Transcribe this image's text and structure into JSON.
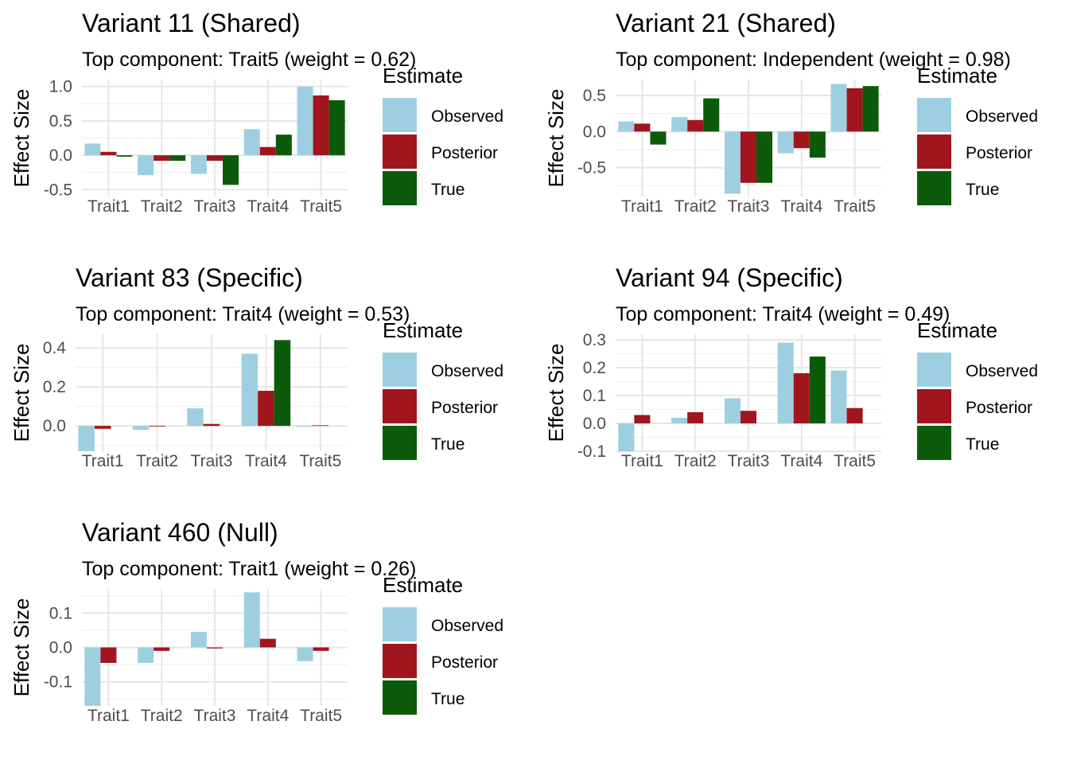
{
  "colors": {
    "Observed": "#9ecfe0",
    "Posterior": "#a1151e",
    "True": "#0b5b0b"
  },
  "legend": {
    "title": "Estimate",
    "items": [
      "Observed",
      "Posterior",
      "True"
    ]
  },
  "chart_data": [
    {
      "type": "bar",
      "title": "Variant 11 (Shared)",
      "subtitle": "Top component: Trait5 (weight = 0.62)",
      "ylabel": "Effect Size",
      "categories": [
        "Trait1",
        "Trait2",
        "Trait3",
        "Trait4",
        "Trait5"
      ],
      "ylim": [
        -0.6,
        1.1
      ],
      "yticks": [
        -0.5,
        0.0,
        0.5,
        1.0
      ],
      "ytick_labels": [
        "-0.5",
        "0.0",
        "0.5",
        "1.0"
      ],
      "series": [
        {
          "name": "Observed",
          "values": [
            0.17,
            -0.29,
            -0.27,
            0.38,
            1.0
          ]
        },
        {
          "name": "Posterior",
          "values": [
            0.05,
            -0.08,
            -0.08,
            0.12,
            0.87
          ]
        },
        {
          "name": "True",
          "values": [
            -0.02,
            -0.08,
            -0.43,
            0.3,
            0.8
          ]
        }
      ]
    },
    {
      "type": "bar",
      "title": "Variant 21 (Shared)",
      "subtitle": "Top component: Independent (weight = 0.98)",
      "ylabel": "Effect Size",
      "categories": [
        "Trait1",
        "Trait2",
        "Trait3",
        "Trait4",
        "Trait5"
      ],
      "ylim": [
        -0.9,
        0.72
      ],
      "yticks": [
        -0.5,
        0.0,
        0.5
      ],
      "ytick_labels": [
        "-0.5",
        "0.0",
        "0.5"
      ],
      "series": [
        {
          "name": "Observed",
          "values": [
            0.14,
            0.2,
            -0.86,
            -0.3,
            0.66
          ]
        },
        {
          "name": "Posterior",
          "values": [
            0.11,
            0.16,
            -0.71,
            -0.23,
            0.6
          ]
        },
        {
          "name": "True",
          "values": [
            -0.18,
            0.46,
            -0.71,
            -0.36,
            0.63
          ]
        }
      ]
    },
    {
      "type": "bar",
      "title": "Variant 83 (Specific)",
      "subtitle": "Top component: Trait4 (weight = 0.53)",
      "ylabel": "Effect Size",
      "categories": [
        "Trait1",
        "Trait2",
        "Trait3",
        "Trait4",
        "Trait5"
      ],
      "ylim": [
        -0.13,
        0.47
      ],
      "yticks": [
        0.0,
        0.2,
        0.4
      ],
      "ytick_labels": [
        "0.0",
        "0.2",
        "0.4"
      ],
      "series": [
        {
          "name": "Observed",
          "values": [
            -0.13,
            -0.02,
            0.09,
            0.37,
            -0.005
          ]
        },
        {
          "name": "Posterior",
          "values": [
            -0.015,
            -0.003,
            0.01,
            0.18,
            0.003
          ]
        },
        {
          "name": "True",
          "values": [
            0.0,
            0.0,
            0.0,
            0.44,
            0.0
          ]
        }
      ]
    },
    {
      "type": "bar",
      "title": "Variant 94 (Specific)",
      "subtitle": "Top component: Trait4 (weight = 0.49)",
      "ylabel": "Effect Size",
      "categories": [
        "Trait1",
        "Trait2",
        "Trait3",
        "Trait4",
        "Trait5"
      ],
      "ylim": [
        -0.1,
        0.32
      ],
      "yticks": [
        -0.1,
        0.0,
        0.1,
        0.2,
        0.3
      ],
      "ytick_labels": [
        "-0.1",
        "0.0",
        "0.1",
        "0.2",
        "0.3"
      ],
      "series": [
        {
          "name": "Observed",
          "values": [
            -0.1,
            0.02,
            0.09,
            0.29,
            0.19
          ]
        },
        {
          "name": "Posterior",
          "values": [
            0.03,
            0.04,
            0.045,
            0.18,
            0.055
          ]
        },
        {
          "name": "True",
          "values": [
            0.0,
            0.0,
            0.0,
            0.24,
            0.0
          ]
        }
      ]
    },
    {
      "type": "bar",
      "title": "Variant 460 (Null)",
      "subtitle": "Top component: Trait1 (weight = 0.26)",
      "ylabel": "Effect Size",
      "categories": [
        "Trait1",
        "Trait2",
        "Trait3",
        "Trait4",
        "Trait5"
      ],
      "ylim": [
        -0.17,
        0.17
      ],
      "yticks": [
        -0.1,
        0.0,
        0.1
      ],
      "ytick_labels": [
        "-0.1",
        "0.0",
        "0.1"
      ],
      "series": [
        {
          "name": "Observed",
          "values": [
            -0.17,
            -0.045,
            0.045,
            0.16,
            -0.04
          ]
        },
        {
          "name": "Posterior",
          "values": [
            -0.045,
            -0.01,
            -0.003,
            0.025,
            -0.01
          ]
        },
        {
          "name": "True",
          "values": [
            0.0,
            0.0,
            0.0,
            0.0,
            0.0
          ]
        }
      ]
    }
  ]
}
